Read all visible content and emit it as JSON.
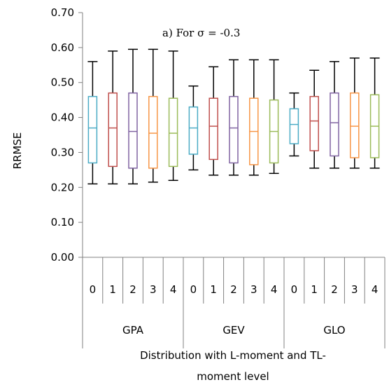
{
  "chart_data": {
    "type": "boxplot",
    "annotation": "a) For σ = -0.3",
    "ylabel": "RRMSE",
    "xlabel_line1": "Distribution with L-moment and TL-",
    "xlabel_line2": "moment level",
    "ylim": [
      0,
      0.7
    ],
    "yticks": [
      "0.00",
      "0.10",
      "0.20",
      "0.30",
      "0.40",
      "0.50",
      "0.60",
      "0.70"
    ],
    "groups": [
      {
        "name": "GPA",
        "boxes": [
          {
            "level": "0",
            "color": "#4bacc6",
            "min": 0.21,
            "q1": 0.27,
            "median": 0.37,
            "q3": 0.46,
            "max": 0.56
          },
          {
            "level": "1",
            "color": "#c0504d",
            "min": 0.21,
            "q1": 0.26,
            "median": 0.37,
            "q3": 0.47,
            "max": 0.59
          },
          {
            "level": "2",
            "color": "#8064a2",
            "min": 0.21,
            "q1": 0.255,
            "median": 0.36,
            "q3": 0.47,
            "max": 0.595
          },
          {
            "level": "3",
            "color": "#f79646",
            "min": 0.215,
            "q1": 0.255,
            "median": 0.355,
            "q3": 0.46,
            "max": 0.595
          },
          {
            "level": "4",
            "color": "#9bbb59",
            "min": 0.22,
            "q1": 0.26,
            "median": 0.355,
            "q3": 0.455,
            "max": 0.59
          }
        ]
      },
      {
        "name": "GEV",
        "boxes": [
          {
            "level": "0",
            "color": "#4bacc6",
            "min": 0.25,
            "q1": 0.295,
            "median": 0.37,
            "q3": 0.43,
            "max": 0.49
          },
          {
            "level": "1",
            "color": "#c0504d",
            "min": 0.235,
            "q1": 0.28,
            "median": 0.375,
            "q3": 0.455,
            "max": 0.545
          },
          {
            "level": "2",
            "color": "#8064a2",
            "min": 0.235,
            "q1": 0.27,
            "median": 0.37,
            "q3": 0.46,
            "max": 0.565
          },
          {
            "level": "3",
            "color": "#f79646",
            "min": 0.235,
            "q1": 0.265,
            "median": 0.36,
            "q3": 0.455,
            "max": 0.565
          },
          {
            "level": "4",
            "color": "#9bbb59",
            "min": 0.24,
            "q1": 0.27,
            "median": 0.36,
            "q3": 0.45,
            "max": 0.565
          }
        ]
      },
      {
        "name": "GLO",
        "boxes": [
          {
            "level": "0",
            "color": "#4bacc6",
            "min": 0.29,
            "q1": 0.325,
            "median": 0.38,
            "q3": 0.425,
            "max": 0.47
          },
          {
            "level": "1",
            "color": "#c0504d",
            "min": 0.255,
            "q1": 0.305,
            "median": 0.39,
            "q3": 0.46,
            "max": 0.535
          },
          {
            "level": "2",
            "color": "#8064a2",
            "min": 0.255,
            "q1": 0.29,
            "median": 0.385,
            "q3": 0.47,
            "max": 0.56
          },
          {
            "level": "3",
            "color": "#f79646",
            "min": 0.255,
            "q1": 0.285,
            "median": 0.375,
            "q3": 0.47,
            "max": 0.57
          },
          {
            "level": "4",
            "color": "#9bbb59",
            "min": 0.255,
            "q1": 0.285,
            "median": 0.375,
            "q3": 0.465,
            "max": 0.57
          }
        ]
      }
    ]
  },
  "colors": {
    "axis": "#808080",
    "whisker": "#000000",
    "background": "#ffffff"
  }
}
